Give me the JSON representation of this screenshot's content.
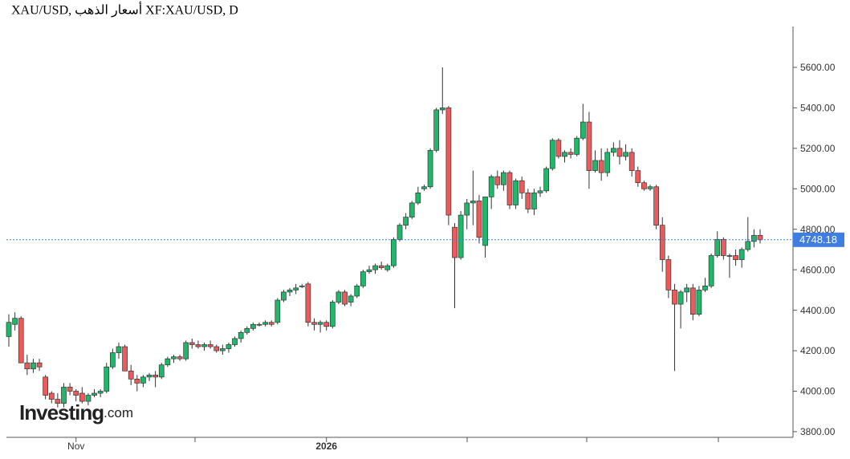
{
  "chart_data": {
    "type": "candlestick",
    "title": "XAU/USD, أسعار الذهب XF:XAU/USD, D",
    "watermark": "Investing",
    "watermark_suffix": ".com",
    "categories": [
      null,
      null,
      null,
      null,
      null,
      null,
      null,
      null,
      null,
      null,
      null,
      "Nov",
      null,
      null,
      null,
      null,
      null,
      null,
      null,
      null,
      null,
      null,
      null,
      null,
      null,
      null,
      null,
      null,
      null,
      null,
      null,
      null,
      null,
      null,
      null,
      null,
      null,
      null,
      null,
      null,
      null,
      null,
      null,
      null,
      null,
      null,
      null,
      null,
      null,
      null,
      null,
      null,
      "2026",
      null,
      null,
      null,
      null,
      null,
      null,
      null,
      null,
      null,
      null,
      null,
      null,
      null,
      null,
      null,
      null,
      null,
      null,
      null,
      null,
      null,
      null,
      null,
      null,
      null,
      null,
      null,
      null,
      null,
      null,
      null,
      null,
      null,
      null,
      null,
      null,
      null,
      null,
      null,
      null,
      null,
      null,
      null,
      null,
      null,
      null,
      null,
      null,
      null,
      null,
      null,
      null,
      null,
      null,
      null,
      null,
      null,
      null,
      null,
      null,
      null,
      null,
      null,
      null,
      null,
      null,
      null,
      null,
      null,
      null,
      null
    ],
    "open": [
      4270,
      4330,
      4360,
      4140,
      4110,
      4140,
      4070,
      3990,
      3960,
      3940,
      4020,
      4000,
      3990,
      3950,
      3980,
      3990,
      4000,
      4120,
      4190,
      4220,
      4100,
      4060,
      4040,
      4070,
      4080,
      4070,
      4130,
      4160,
      4170,
      4160,
      4240,
      4230,
      4220,
      4230,
      4220,
      4200,
      4210,
      4230,
      4260,
      4290,
      4310,
      4330,
      4330,
      4340,
      4340,
      4450,
      4490,
      4500,
      4520,
      4530,
      4340,
      4330,
      4340,
      4320,
      4440,
      4490,
      4440,
      4470,
      4520,
      4590,
      4600,
      4620,
      4600,
      4620,
      4750,
      4820,
      4860,
      4930,
      5000,
      5010,
      5190,
      5390,
      5400,
      4810,
      4660,
      4870,
      4930,
      4940,
      4720,
      4960,
      5060,
      5020,
      5080,
      4920,
      5040,
      4980,
      4900,
      4980,
      4990,
      5100,
      5240,
      5160,
      5180,
      5170,
      5250,
      5330,
      5090,
      5140,
      5080,
      5180,
      5200,
      5160,
      5180,
      5090,
      5030,
      5000,
      5010,
      4820,
      4650,
      4500,
      4430,
      4490,
      4510,
      4380,
      4500,
      4520,
      4670,
      4750,
      4670,
      4670,
      4650,
      4700,
      4740,
      4770
    ],
    "high": [
      4380,
      4390,
      4370,
      4180,
      4160,
      4160,
      4080,
      4000,
      3990,
      4040,
      4040,
      4010,
      4020,
      3990,
      4010,
      4010,
      4140,
      4210,
      4240,
      4230,
      4130,
      4080,
      4080,
      4090,
      4100,
      4140,
      4170,
      4180,
      4180,
      4250,
      4260,
      4250,
      4240,
      4250,
      4230,
      4230,
      4240,
      4270,
      4300,
      4320,
      4340,
      4340,
      4350,
      4350,
      4460,
      4500,
      4510,
      4530,
      4530,
      4540,
      4360,
      4350,
      4350,
      4450,
      4500,
      4500,
      4480,
      4530,
      4600,
      4620,
      4630,
      4640,
      4630,
      4760,
      4830,
      4880,
      4940,
      5010,
      5020,
      5200,
      5400,
      5600,
      5410,
      4830,
      4890,
      4950,
      5090,
      4970,
      4960,
      5070,
      5090,
      5090,
      5090,
      5050,
      5060,
      5000,
      5000,
      5010,
      5110,
      5250,
      5250,
      5190,
      5200,
      5260,
      5420,
      5380,
      5190,
      5200,
      5200,
      5230,
      5240,
      5220,
      5200,
      5110,
      5040,
      5020,
      5020,
      4860,
      4670,
      4530,
      4500,
      4530,
      4530,
      4520,
      4560,
      4680,
      4790,
      4760,
      4680,
      4700,
      4710,
      4860,
      4800,
      4800
    ],
    "low": [
      4220,
      4300,
      4140,
      4080,
      4090,
      4100,
      3960,
      3940,
      3920,
      3920,
      3980,
      3950,
      3940,
      3930,
      3970,
      3970,
      3990,
      4110,
      4160,
      4100,
      4030,
      4000,
      4020,
      4050,
      4020,
      4060,
      4120,
      4140,
      4150,
      4150,
      4210,
      4210,
      4200,
      4210,
      4190,
      4180,
      4190,
      4220,
      4240,
      4280,
      4300,
      4320,
      4320,
      4320,
      4330,
      4440,
      4470,
      4480,
      4510,
      4320,
      4300,
      4290,
      4300,
      4310,
      4430,
      4420,
      4420,
      4460,
      4510,
      4580,
      4580,
      4600,
      4590,
      4610,
      4740,
      4800,
      4850,
      4920,
      4990,
      5000,
      5180,
      5370,
      4820,
      4410,
      4650,
      4800,
      4820,
      4730,
      4660,
      4900,
      5000,
      4990,
      4900,
      4900,
      4950,
      4880,
      4870,
      4960,
      4980,
      5090,
      5150,
      5130,
      5150,
      5160,
      5240,
      5000,
      5080,
      5040,
      5060,
      5160,
      5120,
      5140,
      5060,
      5010,
      4990,
      4990,
      4800,
      4590,
      4460,
      4100,
      4310,
      4440,
      4350,
      4370,
      4490,
      4510,
      4660,
      4650,
      4560,
      4620,
      4610,
      4690,
      4710,
      4730
    ],
    "close": [
      4340,
      4360,
      4140,
      4110,
      4140,
      4120,
      3980,
      3960,
      3940,
      4020,
      4000,
      3980,
      3950,
      3980,
      3990,
      4000,
      4120,
      4190,
      4220,
      4100,
      4060,
      4040,
      4070,
      4080,
      4070,
      4130,
      4160,
      4170,
      4160,
      4240,
      4230,
      4220,
      4230,
      4220,
      4200,
      4210,
      4230,
      4260,
      4290,
      4310,
      4330,
      4330,
      4340,
      4330,
      4450,
      4490,
      4500,
      4510,
      4520,
      4340,
      4330,
      4340,
      4320,
      4440,
      4490,
      4430,
      4470,
      4520,
      4590,
      4600,
      4620,
      4610,
      4620,
      4750,
      4820,
      4860,
      4930,
      4980,
      5010,
      5190,
      5390,
      5400,
      4870,
      4660,
      4870,
      4930,
      4940,
      4760,
      4960,
      5060,
      5020,
      5080,
      4920,
      5040,
      4980,
      4900,
      4980,
      4990,
      5100,
      5240,
      5160,
      5180,
      5170,
      5250,
      5330,
      5090,
      5140,
      5080,
      5180,
      5200,
      5160,
      5180,
      5090,
      5030,
      5000,
      5010,
      4820,
      4650,
      4500,
      4430,
      4490,
      4510,
      4380,
      4500,
      4520,
      4670,
      4750,
      4670,
      4670,
      4650,
      4700,
      4740,
      4770,
      4748.18
    ],
    "last_price": 4748.18,
    "up_color": "#1fb86a",
    "down_color": "#ec5b5b",
    "last_price_color": "#3f7de0",
    "ylim": [
      3772,
      5802
    ],
    "yticks": [
      {
        "value": 3800,
        "label": "3800.00"
      },
      {
        "value": 4000,
        "label": "4000.00"
      },
      {
        "value": 4200,
        "label": "4200.00"
      },
      {
        "value": 4400,
        "label": "4400.00"
      },
      {
        "value": 4600,
        "label": "4600.00"
      },
      {
        "value": 4800,
        "label": "4800.00"
      },
      {
        "value": 5000,
        "label": "5000.00"
      },
      {
        "value": 5200,
        "label": "5200.00"
      },
      {
        "value": 5400,
        "label": "5400.00"
      },
      {
        "value": 5600,
        "label": "5600.00"
      }
    ]
  }
}
